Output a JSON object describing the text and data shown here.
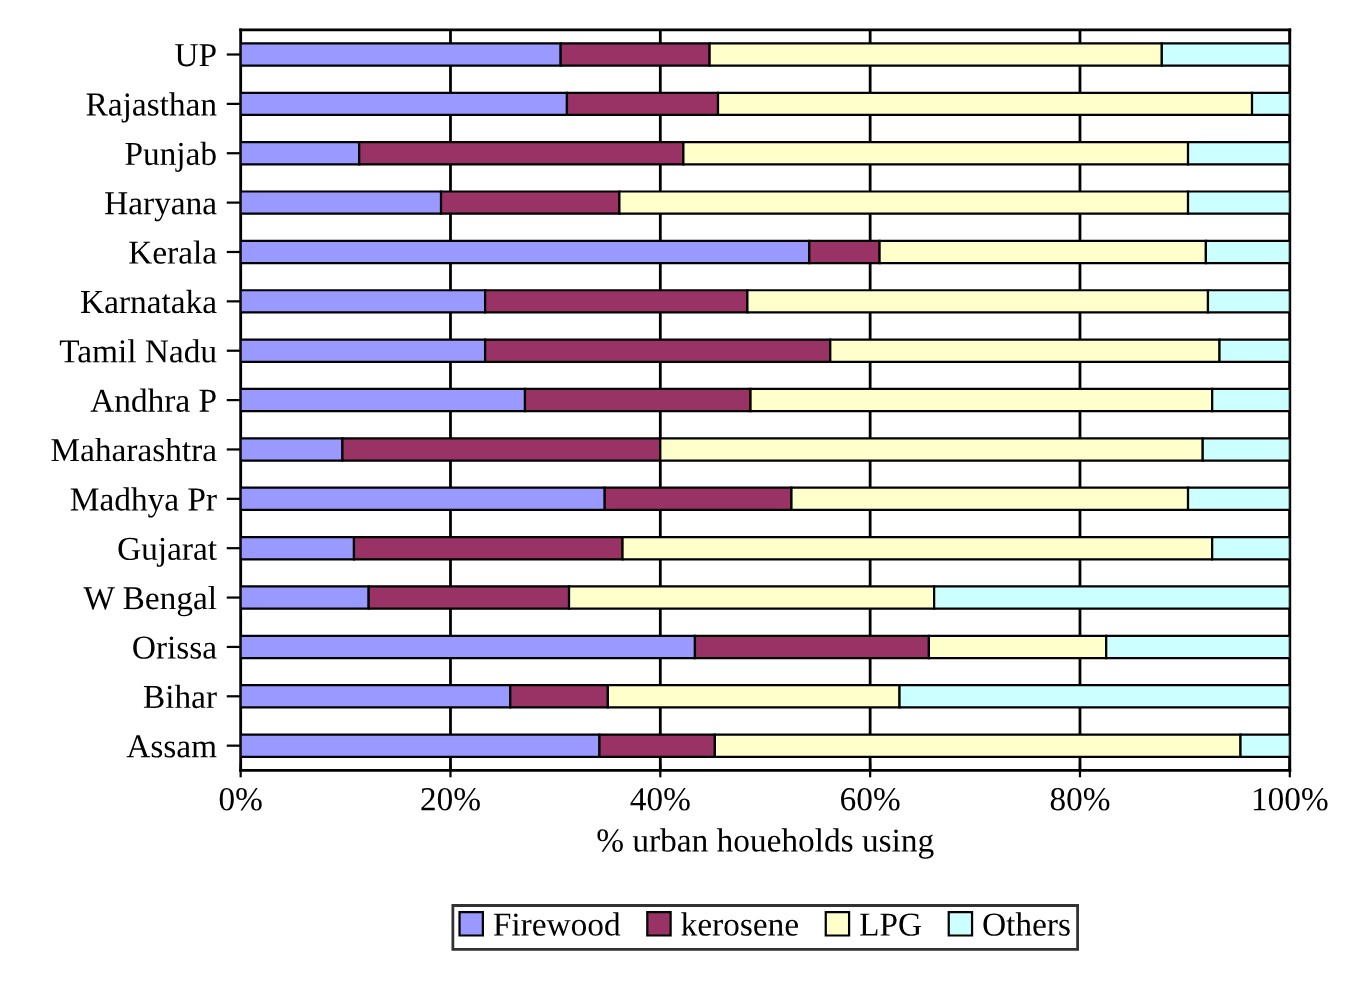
{
  "chart_data": {
    "type": "bar",
    "orientation": "horizontal",
    "stacked": true,
    "xlabel": "% urban houeholds using",
    "categories": [
      "UP",
      "Rajasthan",
      "Punjab",
      "Haryana",
      "Kerala",
      "Karnataka",
      "Tamil Nadu",
      "Andhra P",
      "Maharashtra",
      "Madhya Pr",
      "Gujarat",
      "W Bengal",
      "Orissa",
      "Bihar",
      "Assam"
    ],
    "series": [
      {
        "name": "Firewood",
        "color": "#9999ff",
        "values": [
          30.5,
          31.1,
          11.3,
          19.1,
          54.2,
          23.3,
          23.3,
          27.1,
          9.7,
          34.7,
          10.8,
          12.2,
          43.3,
          25.7,
          34.2
        ]
      },
      {
        "name": "kerosene",
        "color": "#993366",
        "values": [
          14.2,
          14.4,
          30.9,
          17.0,
          6.7,
          25.0,
          32.9,
          21.5,
          30.3,
          17.8,
          25.6,
          19.1,
          22.3,
          9.3,
          11.0
        ]
      },
      {
        "name": "LPG",
        "color": "#ffffcc",
        "values": [
          43.1,
          50.9,
          48.1,
          54.2,
          31.1,
          43.9,
          37.1,
          44.0,
          51.7,
          37.8,
          56.2,
          34.8,
          16.9,
          27.8,
          50.1
        ]
      },
      {
        "name": "Others",
        "color": "#ccffff",
        "values": [
          12.2,
          3.6,
          9.7,
          9.7,
          8.0,
          7.8,
          6.7,
          7.4,
          8.3,
          9.7,
          7.4,
          33.9,
          17.5,
          37.2,
          4.7
        ]
      }
    ],
    "xlim": [
      0,
      100
    ],
    "xticks": [
      {
        "value": 0,
        "label": "0%"
      },
      {
        "value": 20,
        "label": "20%"
      },
      {
        "value": 40,
        "label": "40%"
      },
      {
        "value": 60,
        "label": "60%"
      },
      {
        "value": 80,
        "label": "80%"
      },
      {
        "value": 100,
        "label": "100%"
      }
    ],
    "grid": "x",
    "legend": "bottom"
  }
}
